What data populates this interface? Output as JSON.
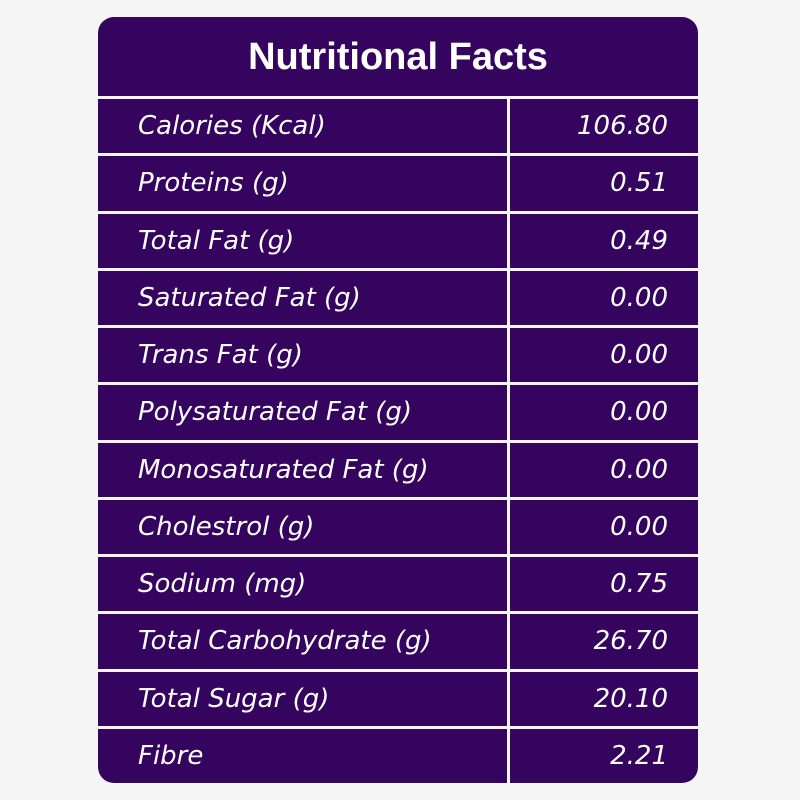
{
  "title": "Nutritional Facts",
  "colors": {
    "card_background": "#35045f",
    "text": "#ffffff",
    "grid_lines": "#f5f5f5",
    "page_background": "#f5f5f5"
  },
  "rows": [
    {
      "label": "Calories (Kcal)",
      "value": "106.80"
    },
    {
      "label": "Proteins (g)",
      "value": "0.51"
    },
    {
      "label": "Total Fat (g)",
      "value": "0.49"
    },
    {
      "label": "Saturated Fat (g)",
      "value": "0.00"
    },
    {
      "label": "Trans Fat (g)",
      "value": "0.00"
    },
    {
      "label": "Polysaturated Fat (g)",
      "value": "0.00"
    },
    {
      "label": "Monosaturated Fat (g)",
      "value": "0.00"
    },
    {
      "label": "Cholestrol (g)",
      "value": "0.00"
    },
    {
      "label": "Sodium (mg)",
      "value": "0.75"
    },
    {
      "label": "Total Carbohydrate (g)",
      "value": "26.70"
    },
    {
      "label": "Total Sugar (g)",
      "value": "20.10"
    },
    {
      "label": "Fibre",
      "value": "2.21"
    }
  ]
}
